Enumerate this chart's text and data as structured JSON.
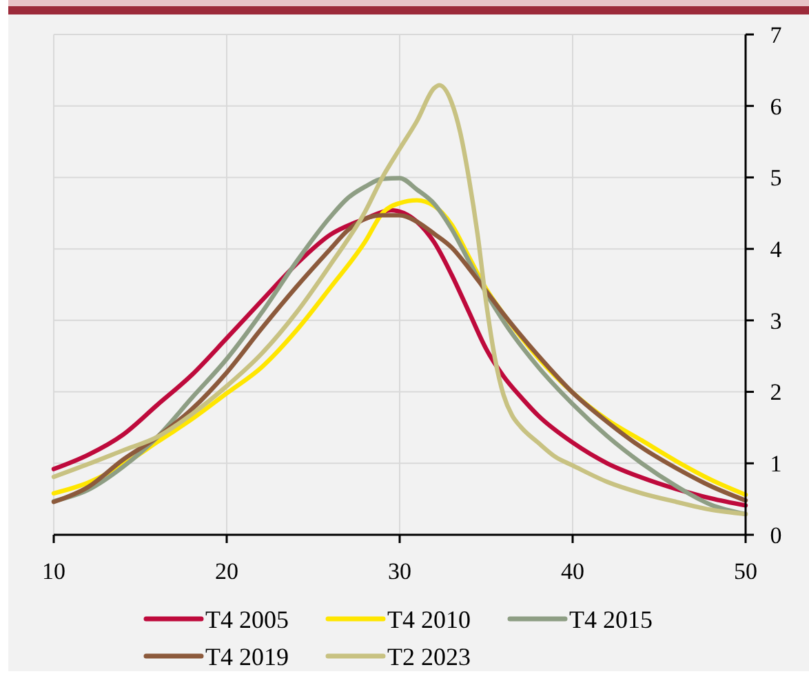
{
  "chart_data": {
    "type": "line",
    "xlim": [
      10,
      50
    ],
    "xticks": [
      10,
      20,
      30,
      40,
      50
    ],
    "ylim": [
      0,
      7
    ],
    "yticks": [
      0,
      1,
      2,
      3,
      4,
      5,
      6,
      7
    ],
    "grid": true,
    "legend": "bottom",
    "line_style": "solid",
    "marker": "none",
    "series": [
      {
        "name": "T4 2005",
        "color": "#be0a3c",
        "x": [
          10,
          12,
          14,
          16,
          18,
          20,
          22,
          24,
          26,
          28,
          29.5,
          31,
          32,
          33,
          34,
          35,
          36,
          37,
          38,
          40,
          42,
          44,
          46,
          48,
          50
        ],
        "values": [
          0.92,
          1.12,
          1.4,
          1.82,
          2.24,
          2.75,
          3.27,
          3.78,
          4.2,
          4.42,
          4.54,
          4.38,
          4.09,
          3.64,
          3.12,
          2.6,
          2.22,
          1.93,
          1.67,
          1.29,
          1.0,
          0.8,
          0.64,
          0.51,
          0.41
        ]
      },
      {
        "name": "T4 2010",
        "color": "#ffe600",
        "x": [
          10,
          12,
          14,
          16,
          18,
          20,
          22,
          24,
          26,
          28,
          29,
          30,
          31,
          32,
          33,
          34,
          35,
          36,
          38,
          40,
          42,
          44,
          46,
          48,
          50
        ],
        "values": [
          0.58,
          0.73,
          0.98,
          1.3,
          1.62,
          1.98,
          2.34,
          2.85,
          3.46,
          4.1,
          4.5,
          4.64,
          4.68,
          4.6,
          4.34,
          3.89,
          3.44,
          3.09,
          2.48,
          1.99,
          1.61,
          1.32,
          1.03,
          0.77,
          0.56
        ]
      },
      {
        "name": "T4 2015",
        "color": "#8e9e84",
        "x": [
          10,
          12,
          14,
          16,
          18,
          20,
          22,
          24,
          26,
          27,
          28,
          29,
          30,
          31,
          32,
          33,
          34,
          35,
          36,
          38,
          40,
          42,
          44,
          46,
          48,
          50
        ],
        "values": [
          0.47,
          0.63,
          0.95,
          1.37,
          1.92,
          2.46,
          3.1,
          3.81,
          4.45,
          4.71,
          4.87,
          4.98,
          4.99,
          4.83,
          4.63,
          4.28,
          3.83,
          3.38,
          2.99,
          2.35,
          1.83,
          1.38,
          1.0,
          0.68,
          0.42,
          0.29
        ]
      },
      {
        "name": "T4 2019",
        "color": "#8c5a3c",
        "x": [
          10,
          12,
          14,
          16,
          18,
          20,
          22,
          24,
          26,
          27,
          28,
          29,
          30,
          31,
          32,
          33,
          34,
          35,
          36,
          38,
          40,
          42,
          44,
          46,
          48,
          50
        ],
        "values": [
          0.46,
          0.67,
          1.05,
          1.37,
          1.76,
          2.27,
          2.88,
          3.46,
          4.0,
          4.26,
          4.42,
          4.47,
          4.47,
          4.38,
          4.21,
          4.02,
          3.73,
          3.41,
          3.09,
          2.51,
          1.99,
          1.58,
          1.22,
          0.93,
          0.68,
          0.48
        ]
      },
      {
        "name": "T2 2023",
        "color": "#c8c282",
        "x": [
          10,
          12,
          14,
          16,
          18,
          20,
          22,
          24,
          26,
          28,
          29,
          30,
          31,
          32,
          32.3,
          33,
          33.5,
          34,
          34.5,
          35,
          35.5,
          36,
          36.5,
          37,
          38,
          39,
          40,
          42,
          44,
          46,
          48,
          50
        ],
        "values": [
          0.81,
          0.99,
          1.18,
          1.37,
          1.69,
          2.08,
          2.53,
          3.1,
          3.78,
          4.52,
          5.0,
          5.4,
          5.79,
          6.25,
          6.29,
          6.05,
          5.63,
          4.99,
          4.21,
          3.25,
          2.48,
          1.96,
          1.67,
          1.51,
          1.29,
          1.09,
          0.97,
          0.74,
          0.58,
          0.46,
          0.35,
          0.29
        ]
      }
    ]
  }
}
